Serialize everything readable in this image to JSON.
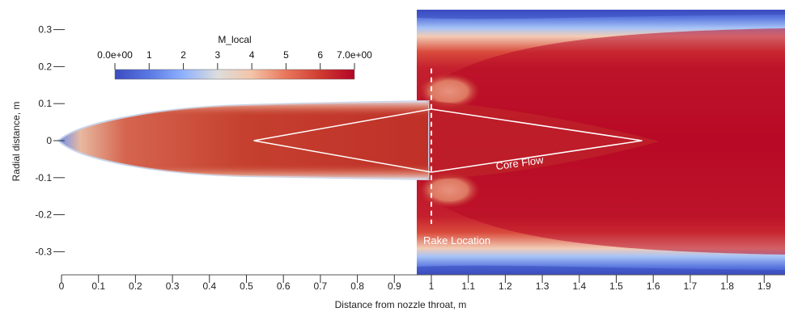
{
  "chart_data": {
    "type": "heatmap",
    "title": "",
    "xlabel": "Distance from nozzle throat, m",
    "ylabel": "Radial distance, m",
    "x_ticks": [
      "0",
      "0.1",
      "0.2",
      "0.3",
      "0.4",
      "0.5",
      "0.6",
      "0.7",
      "0.8",
      "0.9",
      "1",
      "1.1",
      "1.2",
      "1.3",
      "1.4",
      "1.5",
      "1.6",
      "1.7",
      "1.8",
      "1.9"
    ],
    "y_ticks": [
      "0.3",
      "0.2",
      "0.1",
      "0",
      "-0.1",
      "-0.2",
      "-0.3"
    ],
    "xlim": [
      -0.02,
      1.96
    ],
    "ylim": [
      -0.365,
      0.36
    ],
    "colorbar": {
      "label": "M_local",
      "range": [
        0,
        7
      ],
      "tick_labels": [
        "0.0e+00",
        "1",
        "2",
        "3",
        "4",
        "5",
        "6",
        "7.0e+00"
      ],
      "colormap": "cool-to-warm",
      "colors": [
        "#3b4cc0",
        "#dddddd",
        "#b40426"
      ]
    },
    "annotations": [
      {
        "text": "Core Flow",
        "x": 1.24,
        "y": -0.07
      },
      {
        "text": "Rake Location",
        "x": 1.0,
        "y": -0.28
      }
    ],
    "rake_x": 1.0,
    "core_flow_diamond": [
      [
        0.52,
        0.0
      ],
      [
        1.0,
        0.085
      ],
      [
        1.57,
        0.0
      ],
      [
        1.0,
        -0.085
      ]
    ],
    "domain_start_x": 0.96
  }
}
